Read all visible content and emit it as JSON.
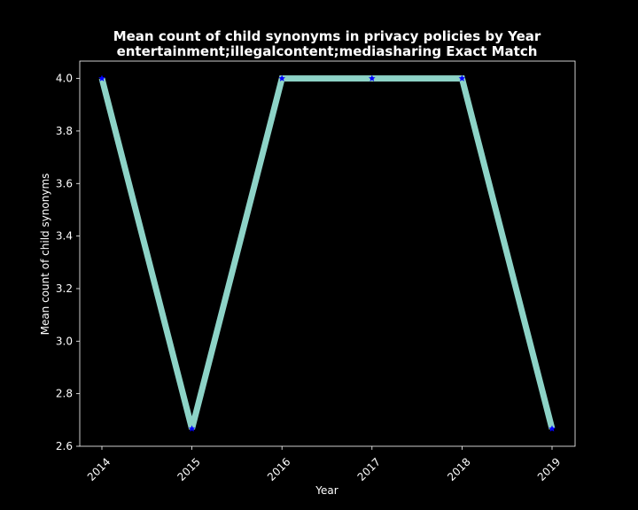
{
  "chart_data": {
    "type": "line",
    "title_lines": [
      "Mean count of child synonyms in privacy policies by Year",
      "entertainment;illegalcontent;mediasharing Exact Match"
    ],
    "xlabel": "Year",
    "ylabel": "Mean count of child synonyms",
    "x": [
      "2014",
      "2015",
      "2016",
      "2017",
      "2018",
      "2019"
    ],
    "series": [
      {
        "values": [
          4.0,
          2.6667,
          4.0,
          4.0,
          4.0,
          2.6667
        ]
      }
    ],
    "ylim": [
      2.6,
      4.066
    ],
    "yticks": [
      2.6,
      2.8,
      3.0,
      3.2,
      3.4,
      3.6,
      3.8,
      4.0
    ],
    "ytick_labels": [
      "2.6",
      "2.8",
      "3.0",
      "3.2",
      "3.4",
      "3.6",
      "3.8",
      "4.0"
    ],
    "grid": false,
    "marker": "star"
  },
  "colors": {
    "background": "#000000",
    "text": "#ffffff",
    "axes": "#ffffff",
    "line": "#8dd3c7",
    "marker": "#0000ff"
  }
}
